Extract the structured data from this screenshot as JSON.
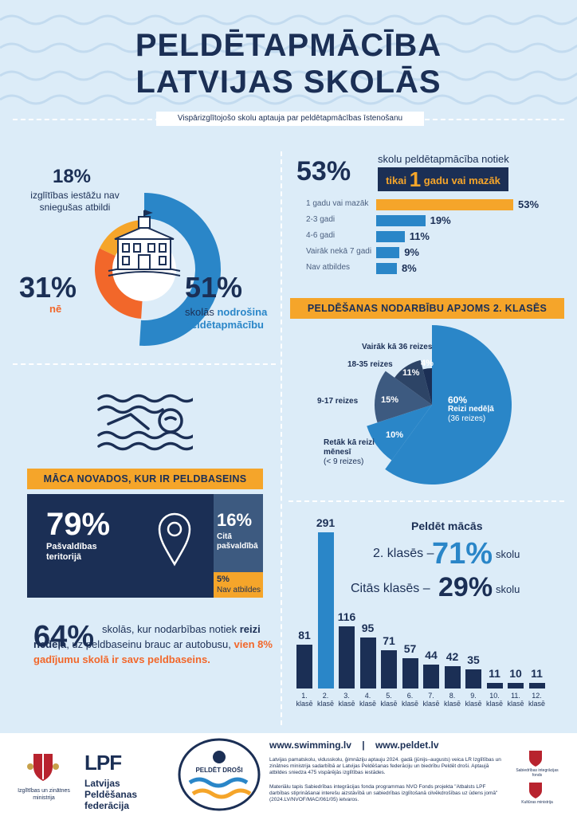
{
  "header": {
    "title_line1": "PELDĒTAPMĀCĪBA",
    "title_line2": "LATVIJAS SKOLĀS",
    "subtitle": "Vispārizglītojošo skolu aptauja par peldētapmācības īstenošanu"
  },
  "donut": {
    "no_answer_pct": "18%",
    "no_answer_label": "izglītības iestāžu nav sniegušas atbildi",
    "no_pct": "31%",
    "no_label": "nē",
    "yes_pct": "51%",
    "yes_label_pre": "skolās ",
    "yes_label_bold": "nodrošina peldētapmācību",
    "icon": "school-building-icon",
    "chart_data": {
      "type": "pie",
      "categories": [
        "nodrošina peldētapmācību",
        "nē",
        "nav sniegušas atbildi"
      ],
      "values": [
        51,
        31,
        18
      ],
      "colors": [
        "#2a86c8",
        "#f2672a",
        "#f5a52a"
      ]
    }
  },
  "duration": {
    "headline_pct": "53%",
    "headline_text": "skolu peldētapmācība notiek",
    "highlight_pre": "tikai ",
    "highlight_num": "1",
    "highlight_post": " gadu vai mazāk",
    "chart_data": {
      "type": "bar",
      "categories": [
        "1 gadu vai mazāk",
        "2-3 gadi",
        "4-6 gadi",
        "Vairāk nekā 7 gadi",
        "Nav atbildes"
      ],
      "values": [
        53,
        19,
        11,
        9,
        8
      ],
      "value_labels": [
        "53%",
        "19%",
        "11%",
        "9%",
        "8%"
      ],
      "colors": [
        "#f5a52a",
        "#2a86c8",
        "#2a86c8",
        "#2a86c8",
        "#2a86c8"
      ]
    }
  },
  "volume": {
    "bar_title": "PELDĒŠANAS NODARBĪBU APJOMS 2. KLASĒS",
    "chart_data": {
      "type": "pie",
      "categories": [
        "Reizi nedēļā",
        "Retāk kā reizi mēnesī",
        "9-17 reizes",
        "18-35 reizes",
        "Vairāk kā 36 reizes"
      ],
      "values": [
        60,
        10,
        15,
        11,
        4
      ],
      "value_labels": [
        "60%",
        "10%",
        "15%",
        "11%",
        "4%"
      ],
      "colors": [
        "#2a86c8",
        "#2a86c8",
        "#3d5a80",
        "#2d4466",
        "#1b2f55"
      ]
    },
    "label_week_bold": "Reizi nedēļā",
    "label_week_sub": "(36 reizes)",
    "label_rare_bold": "Retāk kā reizi mēnesī",
    "label_rare_sub": "(< 9 reizes)",
    "label_9_17": "9-17 reizes",
    "label_18_35": "18-35 reizes",
    "label_36": "Vairāk kā 36 reizes"
  },
  "pool": {
    "icon": "swimmer-icon",
    "bar_title": "MĀCA NOVADOS, KUR IR PELDBASEINS",
    "main_pct": "79%",
    "main_label": "Pašvaldības teritorijā",
    "pin_icon": "location-pin-icon",
    "other_pct": "16%",
    "other_label": "Citā pašvaldībā",
    "na_pct": "5%",
    "na_label": "Nav atbildes"
  },
  "bus": {
    "pct": "64%",
    "t1": "skolās, kur nodarbības notiek ",
    "t2": "reizi nedēļā",
    "t3": ", uz peldbaseinu brauc ar autobusu, ",
    "t4": "vien 8% gadījumu skolā ir savs peldbaseins."
  },
  "grades": {
    "title": "Peldēt mācās",
    "row1_label": "2. klasēs –",
    "row1_pct": "71%",
    "row1_suffix": "skolu",
    "row2_label": "Citās klasēs –",
    "row2_pct": "29%",
    "row2_suffix": "skolu",
    "chart_data": {
      "type": "bar",
      "categories": [
        "1. klasē",
        "2. klasē",
        "3. klasē",
        "4. klasē",
        "5. klasē",
        "6. klasē",
        "7. klasē",
        "8. klasē",
        "9. klasē",
        "10. klasē",
        "11. klasē",
        "12. klasē"
      ],
      "values": [
        81,
        291,
        116,
        95,
        71,
        57,
        44,
        42,
        35,
        11,
        10,
        11
      ],
      "highlight_index": 1,
      "colors": [
        "#1b2f55",
        "#2a86c8"
      ]
    }
  },
  "footer": {
    "ministry": "Izglītības un zinātnes ministrija",
    "lpf_logo": "LPF",
    "lpf_name": "Latvijas Peldēšanas federācija",
    "badge": "PELDĒT DROŠI",
    "site1": "www.swimming.lv",
    "sep": "|",
    "site2": "www.peldet.lv",
    "note1": "Latvijas pamatskolu, vidusskolu, ģimnāziju aptauju 2024. gadā (jūnijs–augusts) veica LR Izglītības un zinātnes ministrija sadarbībā ar Latvijas Peldēšanas federāciju un biedrību Peldēt droši. Aptaujā atbildes sniedza 475 vispārējās izglītības iestādes.",
    "note2": "Materiālu tapis Sabiedrības integrācijas fonda programmas NVO Fonds projekta \"Atbalsts LPF darbības stiprināšanai interešu aizstāvībā un sabiedrības izglītošanā cilvēkdrošības uz ūdens jomā\" (2024.LV/NVOF/MAC/061/05) ietvaros.",
    "sif": "Sabiedrības integrācijas fonds",
    "kult": "Kultūras ministrija"
  }
}
